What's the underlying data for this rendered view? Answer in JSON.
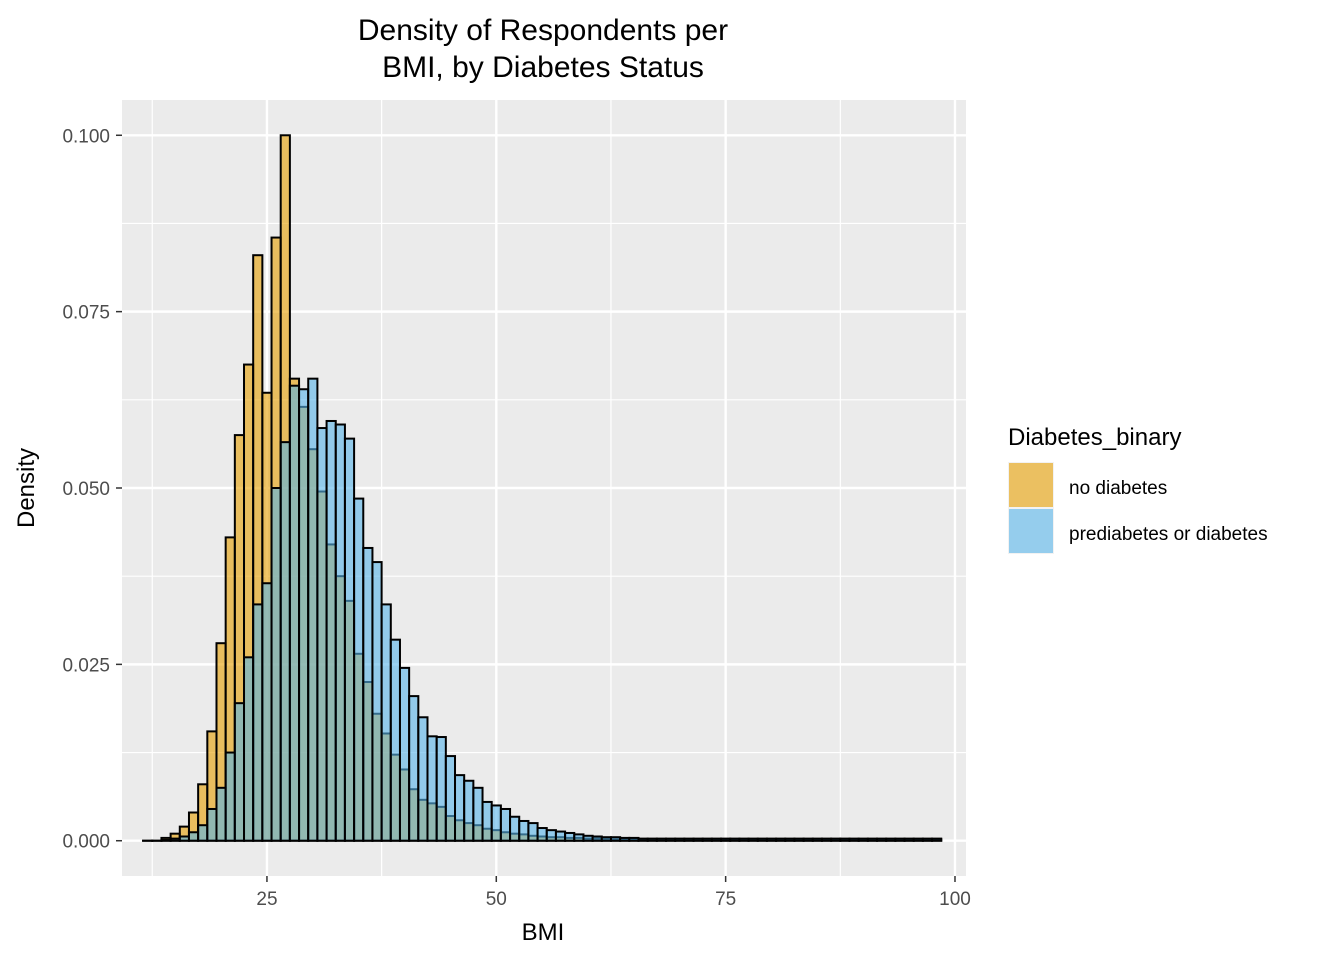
{
  "chart_data": {
    "type": "bar",
    "title_lines": [
      "Density of Respondents per",
      "BMI, by Diabetes Status"
    ],
    "xlabel": "BMI",
    "ylabel": "Density",
    "xlim": [
      9.2,
      101.2
    ],
    "ylim": [
      -0.005,
      0.105
    ],
    "x_ticks": [
      25,
      50,
      75,
      100
    ],
    "x_tick_labels": [
      "25",
      "50",
      "75",
      "100"
    ],
    "y_ticks": [
      0,
      0.025,
      0.05,
      0.075,
      0.1
    ],
    "y_tick_labels": [
      "0.000",
      "0.025",
      "0.050",
      "0.075",
      "0.100"
    ],
    "grid": true,
    "legend_placement": "right",
    "legend_title": "Diabetes_binary",
    "bin_start": 11.5,
    "bin_width": 1,
    "series": [
      {
        "name": "no diabetes",
        "color": "#E69F00",
        "values": [
          0,
          0,
          0.0004,
          0.001,
          0.002,
          0.004,
          0.008,
          0.0155,
          0.028,
          0.043,
          0.0575,
          0.0675,
          0.083,
          0.0635,
          0.0855,
          0.1,
          0.0655,
          0.0615,
          0.0555,
          0.0495,
          0.042,
          0.0375,
          0.034,
          0.0265,
          0.0225,
          0.018,
          0.0152,
          0.0122,
          0.0101,
          0.0073,
          0.0058,
          0.0053,
          0.0048,
          0.0035,
          0.0029,
          0.0025,
          0.0022,
          0.0017,
          0.0015,
          0.0012,
          0.001,
          0.0009,
          0.0007,
          0.0006,
          0.0005,
          0.0005,
          0.0004,
          0.0004,
          0.0003,
          0.0003,
          0.0003,
          0.0002,
          0.0002,
          0.0002,
          0.0002,
          0.0002,
          0.0002,
          0.0002,
          0.0002,
          0.0002,
          0.0002,
          0.0002,
          0.0002,
          0.0002,
          0.0002,
          0.0002,
          0.0002,
          0.0002,
          0.0002,
          0.0002,
          0.0002,
          0.0002,
          0.0002,
          0.0002,
          0.0002,
          0.0002,
          0.0002,
          0.0002,
          0.0002,
          0.0002,
          0.0002,
          0.0002,
          0.0002,
          0.0002,
          0.0002,
          0.0002,
          0.0002
        ]
      },
      {
        "name": "prediabetes or diabetes",
        "color": "#56B4E9",
        "values": [
          0,
          0,
          0.0001,
          0.0003,
          0.0006,
          0.0012,
          0.0022,
          0.0045,
          0.0075,
          0.0125,
          0.0195,
          0.026,
          0.0335,
          0.0365,
          0.05,
          0.0565,
          0.0645,
          0.064,
          0.0655,
          0.0585,
          0.0595,
          0.059,
          0.057,
          0.0485,
          0.0415,
          0.0395,
          0.0335,
          0.0285,
          0.0245,
          0.0205,
          0.0175,
          0.0148,
          0.0147,
          0.012,
          0.0093,
          0.0085,
          0.0075,
          0.0055,
          0.005,
          0.0045,
          0.0034,
          0.0028,
          0.0025,
          0.0018,
          0.0015,
          0.0013,
          0.0011,
          0.0009,
          0.0007,
          0.0006,
          0.0005,
          0.0005,
          0.0004,
          0.0004,
          0.0003,
          0.0003,
          0.0003,
          0.0003,
          0.0003,
          0.0003,
          0.0003,
          0.0003,
          0.0003,
          0.0003,
          0.0003,
          0.0003,
          0.0003,
          0.0003,
          0.0003,
          0.0003,
          0.0003,
          0.0003,
          0.0003,
          0.0003,
          0.0003,
          0.0003,
          0.0003,
          0.0003,
          0.0003,
          0.0003,
          0.0003,
          0.0003,
          0.0003,
          0.0003,
          0.0003,
          0.0003,
          0.0003
        ]
      }
    ]
  }
}
